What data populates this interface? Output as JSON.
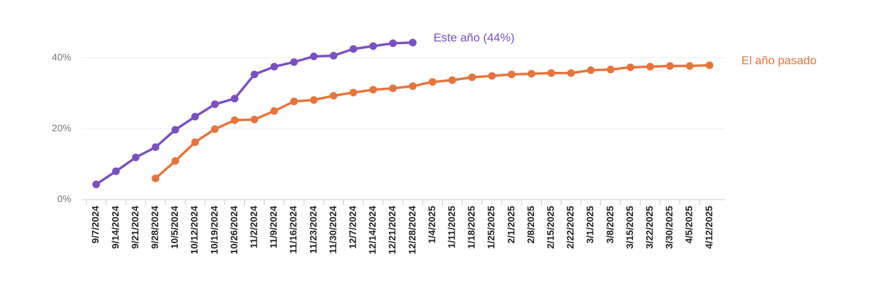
{
  "chart_data": {
    "type": "line",
    "categories": [
      "9/7/2024",
      "9/14/2024",
      "9/21/2024",
      "9/28/2024",
      "10/5/2024",
      "10/12/2024",
      "10/19/2024",
      "10/26/2024",
      "11/2/2024",
      "11/9/2024",
      "11/16/2024",
      "11/23/2024",
      "11/30/2024",
      "12/7/2024",
      "12/14/2024",
      "12/21/2024",
      "12/28/2024",
      "1/4/2025",
      "1/11/2025",
      "1/18/2025",
      "1/25/2025",
      "2/1/2025",
      "2/8/2025",
      "2/15/2025",
      "2/22/2025",
      "3/1/2025",
      "3/8/2025",
      "3/15/2025",
      "3/22/2025",
      "3/30/2025",
      "4/5/2025",
      "4/12/2025"
    ],
    "series": [
      {
        "name": "Este año (44%)",
        "color": "#7a4fc4",
        "values": [
          4.3,
          8.0,
          11.9,
          14.8,
          19.7,
          23.4,
          26.9,
          28.5,
          35.3,
          37.5,
          38.8,
          40.4,
          40.6,
          42.5,
          43.3,
          44.1,
          44.3,
          null,
          null,
          null,
          null,
          null,
          null,
          null,
          null,
          null,
          null,
          null,
          null,
          null,
          null,
          null
        ]
      },
      {
        "name": "El año pasado",
        "color": "#e8743b",
        "values": [
          null,
          null,
          null,
          6.0,
          10.9,
          16.2,
          19.9,
          22.4,
          22.6,
          25.0,
          27.7,
          28.1,
          29.3,
          30.2,
          31.0,
          31.4,
          32.0,
          33.2,
          33.7,
          34.5,
          34.9,
          35.3,
          35.5,
          35.7,
          35.7,
          36.5,
          36.7,
          37.3,
          37.5,
          37.7,
          37.7,
          37.9
        ]
      }
    ],
    "ylim": [
      0,
      45
    ],
    "yticks": [
      {
        "value": 0,
        "label": "0%"
      },
      {
        "value": 20,
        "label": "20%"
      },
      {
        "value": 40,
        "label": "40%"
      }
    ],
    "grid": true
  }
}
